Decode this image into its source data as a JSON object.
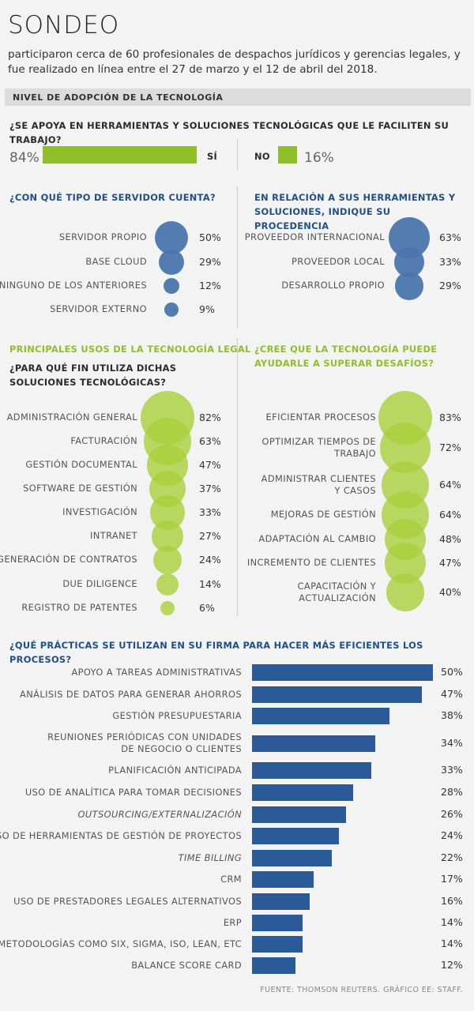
{
  "header": {
    "title": "SONDEO",
    "intro": "participaron cerca de 60 profesionales de despachos jurídicos y gerencias legales, y fue realizado en línea entre el 27 de marzo y el 12 de abril del 2018.",
    "band": "NIVEL DE ADOPCIÓN DE LA TECNOLOGÍA"
  },
  "colors": {
    "blue": "#2a5a98",
    "green": "#a9d03b",
    "bubble_blue": "#4a76ac"
  },
  "chart_data": [
    {
      "type": "bar",
      "title": "¿SE APOYA EN HERRAMIENTAS Y SOLUCIONES TECNOLÓGICAS QUE LE FACILITEN SU TRABAJO?",
      "categories": [
        "SÍ",
        "NO"
      ],
      "values": [
        84,
        16
      ],
      "labels": [
        "84%",
        "16%"
      ]
    },
    {
      "type": "scatter",
      "title": "¿CON QUÉ TIPO DE SERVIDOR CUENTA?",
      "categories": [
        "SERVIDOR PROPIO",
        "BASE CLOUD",
        "NINGUNO DE LOS ANTERIORES",
        "SERVIDOR EXTERNO"
      ],
      "values": [
        50,
        29,
        12,
        9
      ],
      "labels": [
        "50%",
        "29%",
        "12%",
        "9%"
      ]
    },
    {
      "type": "scatter",
      "title": "EN RELACIÓN A SUS HERRAMIENTAS Y SOLUCIONES, INDIQUE SU PROCEDENCIA",
      "categories": [
        "PROVEEDOR INTERNACIONAL",
        "PROVEEDOR LOCAL",
        "DESARROLLO PROPIO"
      ],
      "values": [
        63,
        33,
        29
      ],
      "labels": [
        "63%",
        "33%",
        "29%"
      ]
    },
    {
      "type": "scatter",
      "title": "PRINCIPALES USOS DE LA TECNOLOGÍA LEGAL",
      "subtitle": "¿PARA QUÉ FIN UTILIZA DICHAS SOLUCIONES TECNOLÓGICAS?",
      "categories": [
        "ADMINISTRACIÓN GENERAL",
        "FACTURACIÓN",
        "GESTIÓN DOCUMENTAL",
        "SOFTWARE DE GESTIÓN",
        "INVESTIGACIÓN",
        "INTRANET",
        "GENERACIÓN DE CONTRATOS",
        "DUE DILIGENCE",
        "REGISTRO DE PATENTES"
      ],
      "values": [
        82,
        63,
        47,
        37,
        33,
        27,
        24,
        14,
        6
      ],
      "labels": [
        "82%",
        "63%",
        "47%",
        "37%",
        "33%",
        "27%",
        "24%",
        "14%",
        "6%"
      ]
    },
    {
      "type": "scatter",
      "title": "¿CREE QUE LA TECNOLOGÍA PUEDE AYUDARLE A SUPERAR DESAFÍOS?",
      "categories": [
        "EFICIENTAR PROCESOS",
        "OPTIMIZAR TIEMPOS DE TRABAJO",
        "ADMINISTRAR CLIENTES Y CASOS",
        "MEJORAS DE GESTIÓN",
        "ADAPTACIÓN AL CAMBIO",
        "INCREMENTO DE CLIENTES",
        "CAPACITACIÓN Y ACTUALIZACIÓN"
      ],
      "values": [
        83,
        72,
        64,
        64,
        48,
        47,
        40
      ],
      "labels": [
        "83%",
        "72%",
        "64%",
        "64%",
        "48%",
        "47%",
        "40%"
      ]
    },
    {
      "type": "bar",
      "title": "¿QUÉ PRÁCTICAS SE UTILIZAN EN SU FIRMA PARA HACER MÁS EFICIENTES LOS PROCESOS?",
      "categories": [
        "APOYO A TAREAS ADMINISTRATIVAS",
        "ANÁLISIS DE DATOS PARA GENERAR AHORROS",
        "GESTIÓN PRESUPUESTARIA",
        "REUNIONES PERIÓDICAS CON UNIDADES DE NEGOCIO O CLIENTES",
        "PLANIFICACIÓN ANTICIPADA",
        "USO DE ANALÍTICA PARA TOMAR DECISIONES",
        "OUTSOURCING/EXTERNALIZACIÓN",
        "USO DE HERRAMIENTAS DE GESTIÓN DE PROYECTOS",
        "TIME BILLING",
        "CRM",
        "USO DE PRESTADORES LEGALES ALTERNATIVOS",
        "ERP",
        "METODOLOGÍAS COMO SIX, SIGMA, ISO, LEAN, ETC",
        "BALANCE SCORE CARD"
      ],
      "values": [
        50,
        47,
        38,
        34,
        33,
        28,
        26,
        24,
        22,
        17,
        16,
        14,
        14,
        12
      ],
      "labels": [
        "50%",
        "47%",
        "38%",
        "34%",
        "33%",
        "28%",
        "26%",
        "24%",
        "22%",
        "17%",
        "16%",
        "14%",
        "14%",
        "12%"
      ]
    }
  ],
  "footer": {
    "source": "FUENTE: THOMSON REUTERS. GRÁFICO EE: STAFF."
  }
}
